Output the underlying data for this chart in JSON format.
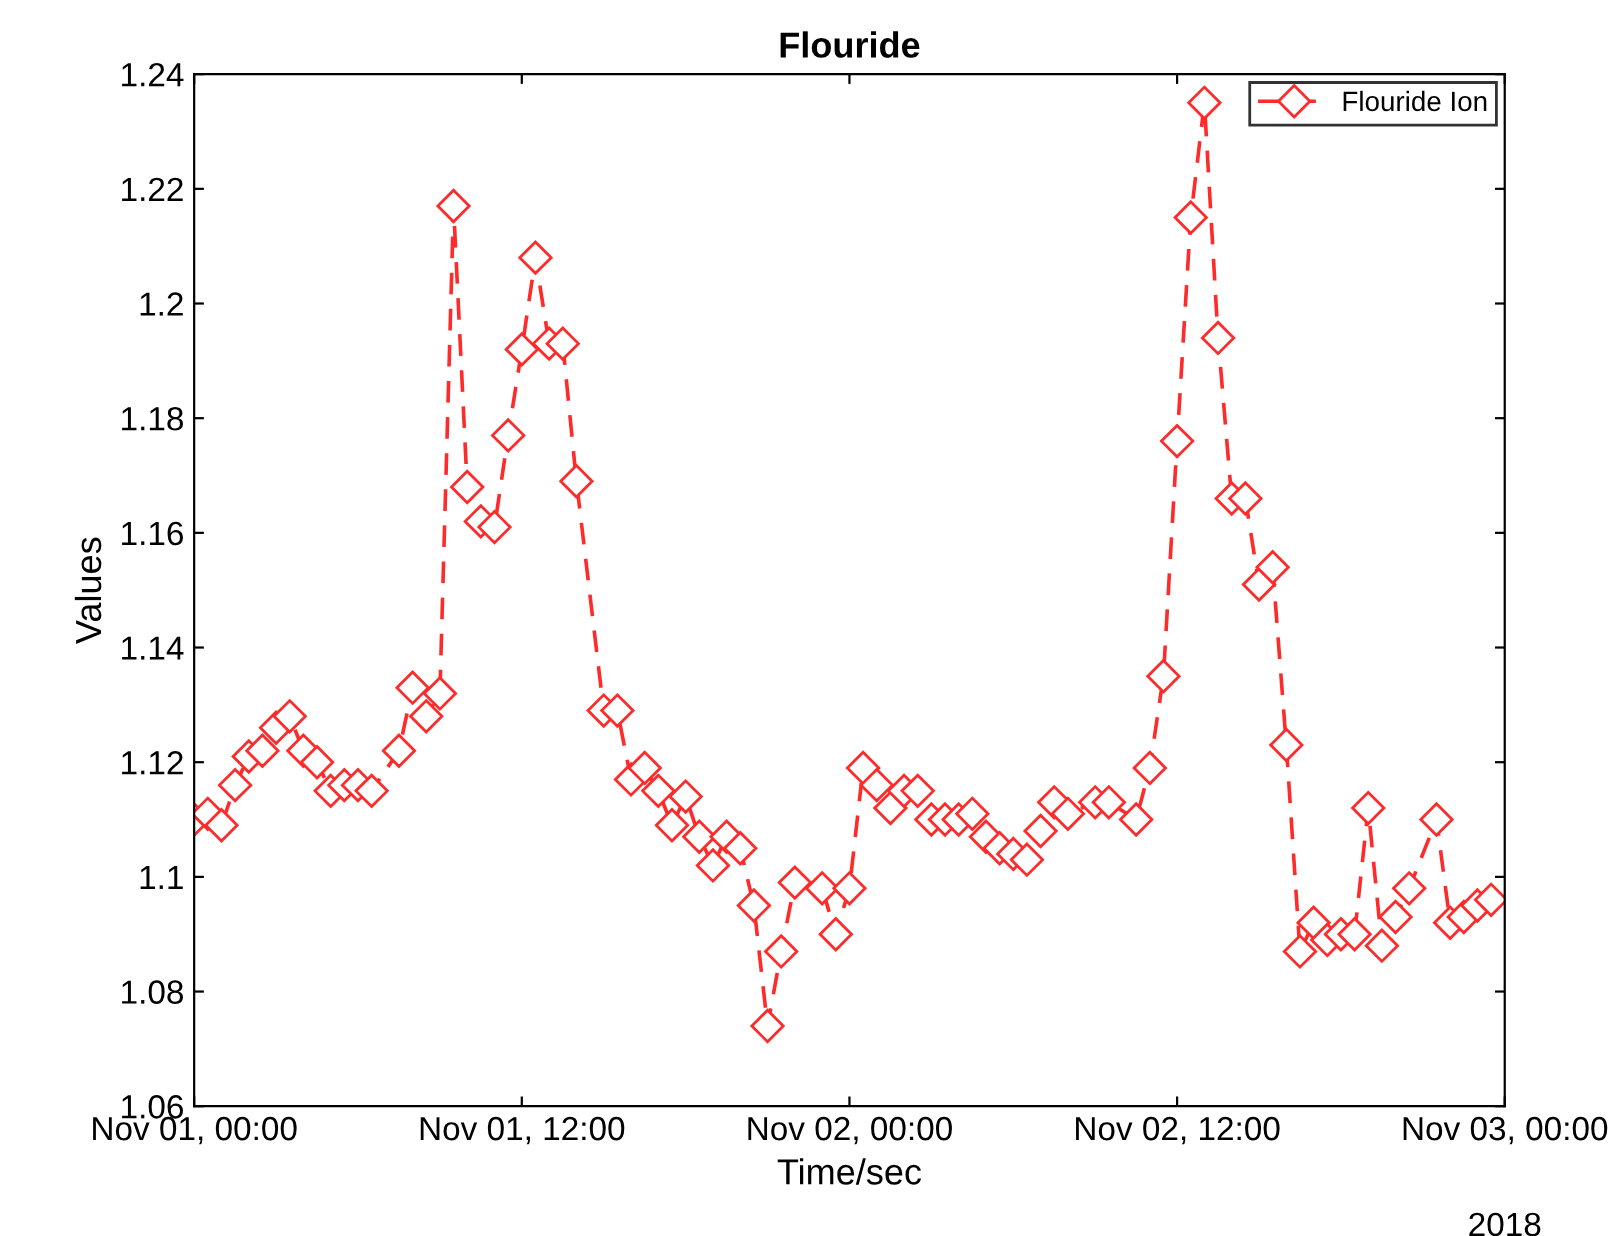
{
  "chart_data": {
    "type": "line",
    "title": "Flouride",
    "xlabel": "Time/sec",
    "ylabel": "Values",
    "annotations": [
      "2018"
    ],
    "x": [
      "2018-11-01T00:00",
      "2018-11-01T00:30",
      "2018-11-01T01:00",
      "2018-11-01T01:30",
      "2018-11-01T02:00",
      "2018-11-01T02:30",
      "2018-11-01T03:00",
      "2018-11-01T03:30",
      "2018-11-01T04:00",
      "2018-11-01T04:30",
      "2018-11-01T05:00",
      "2018-11-01T05:30",
      "2018-11-01T06:00",
      "2018-11-01T06:30",
      "2018-11-01T07:30",
      "2018-11-01T08:00",
      "2018-11-01T08:30",
      "2018-11-01T09:00",
      "2018-11-01T09:30",
      "2018-11-01T10:00",
      "2018-11-01T10:30",
      "2018-11-01T11:00",
      "2018-11-01T11:30",
      "2018-11-01T12:00",
      "2018-11-01T12:30",
      "2018-11-01T13:00",
      "2018-11-01T13:30",
      "2018-11-01T14:00",
      "2018-11-01T15:00",
      "2018-11-01T15:30",
      "2018-11-01T16:00",
      "2018-11-01T16:30",
      "2018-11-01T17:00",
      "2018-11-01T17:30",
      "2018-11-01T18:00",
      "2018-11-01T18:30",
      "2018-11-01T19:00",
      "2018-11-01T19:30",
      "2018-11-01T20:00",
      "2018-11-01T20:30",
      "2018-11-01T21:00",
      "2018-11-01T21:30",
      "2018-11-01T22:00",
      "2018-11-01T23:00",
      "2018-11-01T23:30",
      "2018-11-02T00:00",
      "2018-11-02T00:30",
      "2018-11-02T01:00",
      "2018-11-02T01:30",
      "2018-11-02T02:00",
      "2018-11-02T02:30",
      "2018-11-02T03:00",
      "2018-11-02T03:30",
      "2018-11-02T04:00",
      "2018-11-02T04:30",
      "2018-11-02T05:00",
      "2018-11-02T05:30",
      "2018-11-02T06:00",
      "2018-11-02T06:30",
      "2018-11-02T07:00",
      "2018-11-02T07:30",
      "2018-11-02T08:00",
      "2018-11-02T09:00",
      "2018-11-02T09:30",
      "2018-11-02T10:30",
      "2018-11-02T11:00",
      "2018-11-02T11:30",
      "2018-11-02T12:00",
      "2018-11-02T12:30",
      "2018-11-02T13:00",
      "2018-11-02T13:30",
      "2018-11-02T14:00",
      "2018-11-02T14:30",
      "2018-11-02T15:00",
      "2018-11-02T15:30",
      "2018-11-02T16:00",
      "2018-11-02T16:30",
      "2018-11-02T17:00",
      "2018-11-02T17:30",
      "2018-11-02T18:00",
      "2018-11-02T18:30",
      "2018-11-02T19:00",
      "2018-11-02T19:30",
      "2018-11-02T20:00",
      "2018-11-02T20:30",
      "2018-11-02T21:30",
      "2018-11-02T22:00",
      "2018-11-02T22:30",
      "2018-11-02T23:00",
      "2018-11-02T23:30"
    ],
    "series": [
      {
        "name": "Flouride Ion",
        "color": "#ff2a2a",
        "values": [
          1.11,
          1.111,
          1.109,
          1.116,
          1.121,
          1.122,
          1.126,
          1.128,
          1.122,
          1.12,
          1.115,
          1.116,
          1.116,
          1.115,
          1.122,
          1.133,
          1.128,
          1.132,
          1.217,
          1.168,
          1.162,
          1.161,
          1.177,
          1.192,
          1.208,
          1.193,
          1.193,
          1.169,
          1.129,
          1.129,
          1.117,
          1.119,
          1.115,
          1.109,
          1.114,
          1.107,
          1.102,
          1.107,
          1.105,
          1.095,
          1.074,
          1.087,
          1.099,
          1.098,
          1.09,
          1.098,
          1.119,
          1.116,
          1.112,
          1.115,
          1.115,
          1.11,
          1.11,
          1.11,
          1.111,
          1.107,
          1.105,
          1.104,
          1.103,
          1.108,
          1.113,
          1.111,
          1.113,
          1.113,
          1.11,
          1.119,
          1.135,
          1.176,
          1.215,
          1.235,
          1.194,
          1.166,
          1.166,
          1.151,
          1.154,
          1.123,
          1.087,
          1.092,
          1.089,
          1.09,
          1.09,
          1.112,
          1.088,
          1.093,
          1.098,
          1.11,
          1.092,
          1.093,
          1.095,
          1.096
        ]
      }
    ],
    "xlim": [
      "2018-11-01T00:00",
      "2018-11-03T00:00"
    ],
    "xticks": [
      {
        "value": "2018-11-01T00:00",
        "label": "Nov 01, 00:00"
      },
      {
        "value": "2018-11-01T12:00",
        "label": "Nov 01, 12:00"
      },
      {
        "value": "2018-11-02T00:00",
        "label": "Nov 02, 00:00"
      },
      {
        "value": "2018-11-02T12:00",
        "label": "Nov 02, 12:00"
      },
      {
        "value": "2018-11-03T00:00",
        "label": "Nov 03, 00:00"
      }
    ],
    "ylim": [
      1.06,
      1.24
    ],
    "yticks": [
      1.06,
      1.08,
      1.1,
      1.12,
      1.14,
      1.16,
      1.18,
      1.2,
      1.22,
      1.24
    ],
    "marker": "diamond",
    "line_style": "dashed",
    "legend": "top right",
    "grid": false
  }
}
